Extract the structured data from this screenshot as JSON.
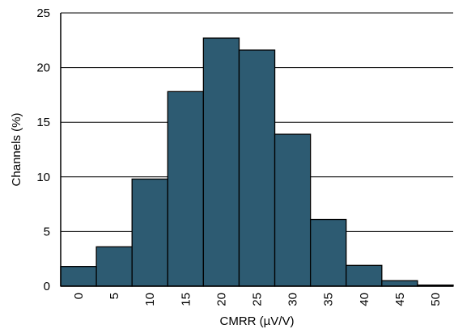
{
  "chart_data": {
    "type": "bar",
    "title": "",
    "xlabel": "CMRR (µV/V)",
    "ylabel": "Channels (%)",
    "categories": [
      "0",
      "5",
      "10",
      "15",
      "20",
      "25",
      "30",
      "35",
      "40",
      "45",
      "50"
    ],
    "values": [
      1.8,
      3.6,
      9.8,
      17.8,
      22.7,
      21.6,
      13.9,
      6.1,
      1.9,
      0.5,
      0.1
    ],
    "ylim": [
      0,
      25
    ],
    "yticks": [
      "0",
      "5",
      "10",
      "15",
      "20",
      "25"
    ],
    "grid": "horizontal",
    "colors": {
      "bar": "#2d5b72",
      "edge": "#000000"
    }
  }
}
